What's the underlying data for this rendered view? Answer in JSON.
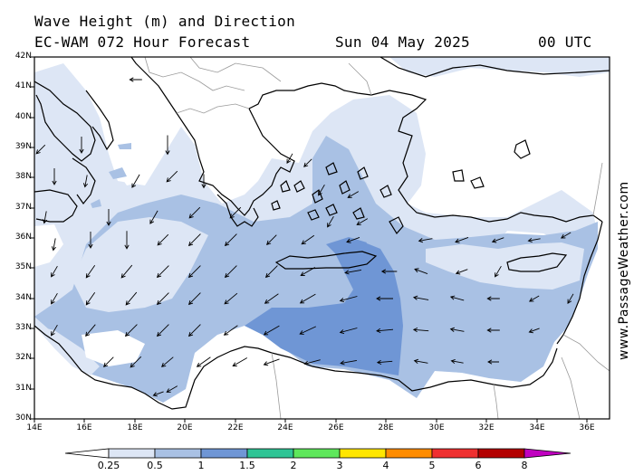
{
  "header": {
    "title": "Wave Height (m) and Direction",
    "model": "EC-WAM 072 Hour Forecast",
    "date": "Sun 04 May 2025",
    "time": "00 UTC"
  },
  "credit": "www.PassageWeather.com",
  "map": {
    "lat_labels": [
      "42N",
      "41N",
      "40N",
      "39N",
      "38N",
      "37N",
      "36N",
      "35N",
      "34N",
      "33N",
      "32N",
      "31N",
      "30N"
    ],
    "lon_labels": [
      "14E",
      "16E",
      "18E",
      "20E",
      "22E",
      "24E",
      "26E",
      "28E",
      "30E",
      "32E",
      "34E",
      "36E"
    ]
  },
  "legend": {
    "colors": [
      "#ffffff",
      "#dde6f5",
      "#a9c1e4",
      "#6f96d5",
      "#2fc495",
      "#5ee75b",
      "#ffe600",
      "#ff8c00",
      "#ef3030",
      "#b30000",
      "#c000c0"
    ],
    "labels": [
      "0.25",
      "0.5",
      "1",
      "1.5",
      "2",
      "3",
      "4",
      "5",
      "6",
      "8"
    ]
  },
  "arrows": [
    [
      45,
      165,
      135,
      45
    ],
    [
      90,
      160,
      90,
      60
    ],
    [
      150,
      88,
      180,
      45
    ],
    [
      185,
      160,
      90,
      70
    ],
    [
      60,
      195,
      90,
      60
    ],
    [
      95,
      200,
      100,
      45
    ],
    [
      150,
      200,
      120,
      55
    ],
    [
      190,
      195,
      135,
      55
    ],
    [
      225,
      200,
      90,
      50
    ],
    [
      50,
      240,
      100,
      45
    ],
    [
      120,
      240,
      90,
      60
    ],
    [
      170,
      240,
      120,
      55
    ],
    [
      215,
      235,
      135,
      55
    ],
    [
      260,
      235,
      135,
      55
    ],
    [
      60,
      270,
      100,
      45
    ],
    [
      100,
      265,
      90,
      60
    ],
    [
      140,
      265,
      90,
      65
    ],
    [
      180,
      265,
      135,
      55
    ],
    [
      215,
      265,
      135,
      60
    ],
    [
      255,
      265,
      135,
      60
    ],
    [
      300,
      265,
      135,
      50
    ],
    [
      340,
      265,
      145,
      55
    ],
    [
      390,
      265,
      160,
      50
    ],
    [
      60,
      300,
      120,
      45
    ],
    [
      100,
      300,
      125,
      55
    ],
    [
      140,
      300,
      130,
      60
    ],
    [
      180,
      300,
      135,
      60
    ],
    [
      215,
      300,
      135,
      60
    ],
    [
      255,
      300,
      135,
      60
    ],
    [
      300,
      300,
      135,
      60
    ],
    [
      340,
      300,
      150,
      60
    ],
    [
      390,
      300,
      170,
      60
    ],
    [
      430,
      300,
      180,
      55
    ],
    [
      465,
      300,
      200,
      50
    ],
    [
      510,
      300,
      160,
      45
    ],
    [
      550,
      300,
      120,
      45
    ],
    [
      60,
      330,
      120,
      45
    ],
    [
      100,
      330,
      125,
      55
    ],
    [
      145,
      330,
      130,
      60
    ],
    [
      180,
      330,
      135,
      60
    ],
    [
      215,
      330,
      135,
      60
    ],
    [
      255,
      330,
      140,
      60
    ],
    [
      300,
      330,
      145,
      60
    ],
    [
      340,
      330,
      150,
      65
    ],
    [
      385,
      330,
      165,
      65
    ],
    [
      425,
      330,
      180,
      60
    ],
    [
      465,
      330,
      190,
      55
    ],
    [
      505,
      330,
      195,
      50
    ],
    [
      545,
      330,
      180,
      45
    ],
    [
      590,
      330,
      150,
      40
    ],
    [
      630,
      330,
      120,
      40
    ],
    [
      60,
      365,
      120,
      45
    ],
    [
      100,
      365,
      130,
      55
    ],
    [
      145,
      365,
      135,
      60
    ],
    [
      180,
      365,
      135,
      60
    ],
    [
      215,
      365,
      135,
      60
    ],
    [
      255,
      365,
      145,
      60
    ],
    [
      300,
      365,
      150,
      65
    ],
    [
      340,
      365,
      155,
      65
    ],
    [
      385,
      365,
      165,
      65
    ],
    [
      425,
      365,
      175,
      60
    ],
    [
      465,
      365,
      185,
      55
    ],
    [
      505,
      365,
      190,
      50
    ],
    [
      545,
      365,
      180,
      45
    ],
    [
      590,
      365,
      160,
      40
    ],
    [
      120,
      400,
      135,
      50
    ],
    [
      150,
      400,
      135,
      55
    ],
    [
      185,
      400,
      140,
      55
    ],
    [
      225,
      400,
      145,
      60
    ],
    [
      265,
      400,
      150,
      60
    ],
    [
      300,
      400,
      160,
      60
    ],
    [
      345,
      400,
      165,
      60
    ],
    [
      385,
      400,
      170,
      60
    ],
    [
      425,
      400,
      175,
      55
    ],
    [
      465,
      400,
      190,
      50
    ],
    [
      505,
      400,
      190,
      45
    ],
    [
      545,
      400,
      180,
      40
    ],
    [
      190,
      430,
      150,
      45
    ],
    [
      175,
      435,
      160,
      40
    ],
    [
      470,
      265,
      170,
      50
    ],
    [
      510,
      265,
      160,
      50
    ],
    [
      550,
      265,
      160,
      45
    ],
    [
      590,
      265,
      170,
      45
    ],
    [
      625,
      260,
      150,
      40
    ],
    [
      355,
      210,
      120,
      45
    ],
    [
      390,
      215,
      150,
      45
    ],
    [
      365,
      245,
      120,
      45
    ],
    [
      400,
      245,
      150,
      45
    ],
    [
      320,
      175,
      120,
      40
    ],
    [
      340,
      180,
      135,
      40
    ]
  ]
}
